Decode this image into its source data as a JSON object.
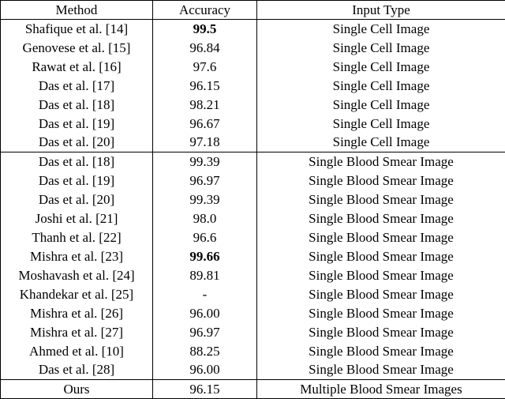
{
  "table": {
    "columns": {
      "method": "Method",
      "accuracy": "Accuracy",
      "input_type": "Input Type"
    },
    "rows": [
      {
        "section": 0,
        "method": "Shafique et al. [14]",
        "accuracy": "99.5",
        "bold": true,
        "input_type": "Single Cell Image"
      },
      {
        "section": 0,
        "method": "Genovese et al. [15]",
        "accuracy": "96.84",
        "bold": false,
        "input_type": "Single Cell Image"
      },
      {
        "section": 0,
        "method": "Rawat et al. [16]",
        "accuracy": "97.6",
        "bold": false,
        "input_type": "Single Cell Image"
      },
      {
        "section": 0,
        "method": "Das et al. [17]",
        "accuracy": "96.15",
        "bold": false,
        "input_type": "Single Cell Image"
      },
      {
        "section": 0,
        "method": "Das et al. [18]",
        "accuracy": "98.21",
        "bold": false,
        "input_type": "Single Cell Image"
      },
      {
        "section": 0,
        "method": "Das et al. [19]",
        "accuracy": "96.67",
        "bold": false,
        "input_type": "Single Cell Image"
      },
      {
        "section": 0,
        "method": "Das et al. [20]",
        "accuracy": "97.18",
        "bold": false,
        "input_type": "Single Cell Image"
      },
      {
        "section": 1,
        "method": "Das et al. [18]",
        "accuracy": "99.39",
        "bold": false,
        "input_type": "Single Blood Smear Image"
      },
      {
        "section": 1,
        "method": "Das et al. [19]",
        "accuracy": "96.97",
        "bold": false,
        "input_type": "Single Blood Smear Image"
      },
      {
        "section": 1,
        "method": "Das et al. [20]",
        "accuracy": "99.39",
        "bold": false,
        "input_type": "Single Blood Smear Image"
      },
      {
        "section": 1,
        "method": "Joshi et al. [21]",
        "accuracy": "98.0",
        "bold": false,
        "input_type": "Single Blood Smear Image"
      },
      {
        "section": 1,
        "method": "Thanh et al. [22]",
        "accuracy": "96.6",
        "bold": false,
        "input_type": "Single Blood Smear Image"
      },
      {
        "section": 1,
        "method": "Mishra et al. [23]",
        "accuracy": "99.66",
        "bold": true,
        "input_type": "Single Blood Smear Image"
      },
      {
        "section": 1,
        "method": "Moshavash et al. [24]",
        "accuracy": "89.81",
        "bold": false,
        "input_type": "Single Blood Smear Image"
      },
      {
        "section": 1,
        "method": "Khandekar et al. [25]",
        "accuracy": "-",
        "bold": false,
        "input_type": "Single Blood Smear Image"
      },
      {
        "section": 1,
        "method": "Mishra et al. [26]",
        "accuracy": "96.00",
        "bold": false,
        "input_type": "Single Blood Smear Image"
      },
      {
        "section": 1,
        "method": "Mishra et al. [27]",
        "accuracy": "96.97",
        "bold": false,
        "input_type": "Single Blood Smear Image"
      },
      {
        "section": 1,
        "method": "Ahmed et al. [10]",
        "accuracy": "88.25",
        "bold": false,
        "input_type": "Single Blood Smear Image"
      },
      {
        "section": 1,
        "method": "Das et al. [28]",
        "accuracy": "96.00",
        "bold": false,
        "input_type": "Single Blood Smear Image"
      },
      {
        "section": 2,
        "method": "Ours",
        "accuracy": "96.15",
        "bold": false,
        "input_type": "Multiple Blood Smear Images"
      }
    ]
  }
}
